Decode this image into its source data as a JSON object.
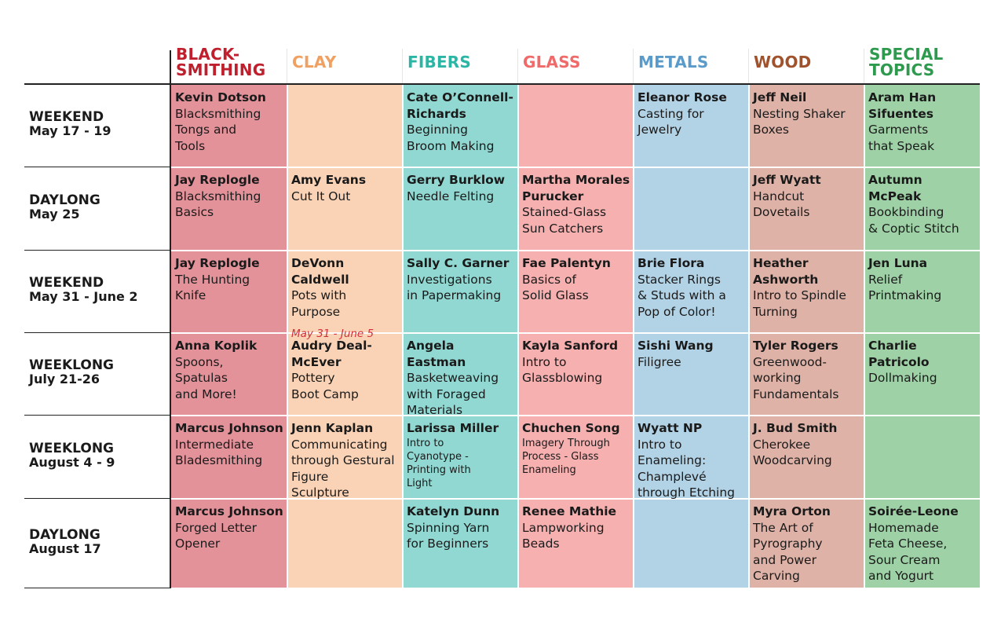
{
  "columns": [
    {
      "key": "blacksmithing",
      "label_lines": [
        "BLACK-",
        "SMITHING"
      ],
      "color": "#c0202e",
      "bg": "#e3929a"
    },
    {
      "key": "clay",
      "label_lines": [
        "CLAY"
      ],
      "color": "#f0a060",
      "bg": "#fad3b6"
    },
    {
      "key": "fibers",
      "label_lines": [
        "FIBERS"
      ],
      "color": "#2ab5a5",
      "bg": "#90d8d1"
    },
    {
      "key": "glass",
      "label_lines": [
        "GLASS"
      ],
      "color": "#f06a6a",
      "bg": "#f6b0b0"
    },
    {
      "key": "metals",
      "label_lines": [
        "METALS"
      ],
      "color": "#5a9bc9",
      "bg": "#b2d2e6"
    },
    {
      "key": "wood",
      "label_lines": [
        "WOOD"
      ],
      "color": "#a0522d",
      "bg": "#dfb2a7"
    },
    {
      "key": "special",
      "label_lines": [
        "SPECIAL",
        "TOPICS"
      ],
      "color": "#2e9a4e",
      "bg": "#9ed1a6"
    }
  ],
  "rows": [
    {
      "type": "WEEKEND",
      "date": "May 17 - 19",
      "cells": [
        {
          "name": [
            "Kevin Dotson"
          ],
          "course": [
            "Blacksmithing",
            "Tongs and",
            "Tools"
          ]
        },
        null,
        {
          "name": [
            "Cate O’Connell-",
            "Richards"
          ],
          "course": [
            "Beginning",
            "Broom Making"
          ]
        },
        null,
        {
          "name": [
            "Eleanor Rose"
          ],
          "course": [
            "Casting for",
            "Jewelry"
          ]
        },
        {
          "name": [
            "Jeff Neil"
          ],
          "course": [
            "Nesting Shaker",
            "Boxes"
          ]
        },
        {
          "name": [
            "Aram Han",
            "Sifuentes"
          ],
          "course": [
            "Garments",
            "that Speak"
          ]
        }
      ]
    },
    {
      "type": "DAYLONG",
      "date": "May 25",
      "cells": [
        {
          "name": [
            "Jay Replogle"
          ],
          "course": [
            "Blacksmithing",
            "Basics"
          ]
        },
        {
          "name": [
            "Amy Evans"
          ],
          "course": [
            "Cut It Out"
          ]
        },
        {
          "name": [
            "Gerry Burklow"
          ],
          "course": [
            "Needle Felting"
          ]
        },
        {
          "name": [
            "Martha Morales",
            "Purucker"
          ],
          "course": [
            "Stained-Glass",
            "Sun Catchers"
          ]
        },
        null,
        {
          "name": [
            "Jeff Wyatt"
          ],
          "course": [
            "Handcut",
            "Dovetails"
          ]
        },
        {
          "name": [
            "Autumn McPeak"
          ],
          "course": [
            "Bookbinding",
            "& Coptic Stitch"
          ]
        }
      ]
    },
    {
      "type": "WEEKEND",
      "date": "May 31 - June 2",
      "cells": [
        {
          "name": [
            "Jay Replogle"
          ],
          "course": [
            "The Hunting",
            "Knife"
          ]
        },
        {
          "name": [
            "DeVonn Caldwell"
          ],
          "course": [
            "Pots with",
            "Purpose"
          ],
          "note": "May 31 - June 5"
        },
        {
          "name": [
            "Sally C. Garner"
          ],
          "course": [
            "Investigations",
            "in Papermaking"
          ]
        },
        {
          "name": [
            "Fae Palentyn"
          ],
          "course": [
            "Basics of",
            "Solid Glass"
          ]
        },
        {
          "name": [
            "Brie Flora"
          ],
          "course": [
            "Stacker Rings",
            "& Studs with a",
            "Pop of Color!"
          ]
        },
        {
          "name": [
            "Heather",
            "Ashworth"
          ],
          "course": [
            "Intro to Spindle",
            "Turning"
          ]
        },
        {
          "name": [
            "Jen Luna"
          ],
          "course": [
            "Relief",
            "Printmaking"
          ]
        }
      ]
    },
    {
      "type": "WEEKLONG",
      "date": "July 21-26",
      "cells": [
        {
          "name": [
            "Anna Koplik"
          ],
          "course": [
            "Spoons,",
            "Spatulas",
            "and More!"
          ]
        },
        {
          "name": [
            "Audry Deal-",
            "McEver"
          ],
          "course": [
            "Pottery",
            "Boot Camp"
          ]
        },
        {
          "name": [
            "Angela Eastman"
          ],
          "course": [
            "Basketweaving",
            "with Foraged",
            "Materials"
          ]
        },
        {
          "name": [
            "Kayla Sanford"
          ],
          "course": [
            "Intro to",
            "Glassblowing"
          ]
        },
        {
          "name": [
            "Sishi Wang"
          ],
          "course": [
            "Filigree"
          ]
        },
        {
          "name": [
            "Tyler Rogers"
          ],
          "course": [
            "Greenwood-",
            "working",
            "Fundamentals"
          ]
        },
        {
          "name": [
            "Charlie",
            "Patricolo"
          ],
          "course": [
            "Dollmaking"
          ]
        }
      ]
    },
    {
      "type": "WEEKLONG",
      "date": "August 4 - 9",
      "cells": [
        {
          "name": [
            "Marcus Johnson"
          ],
          "course": [
            "Intermediate",
            "Bladesmithing"
          ]
        },
        {
          "name": [
            "Jenn Kaplan"
          ],
          "course": [
            "Communicating",
            "through Gestural",
            "Figure",
            "Sculpture"
          ]
        },
        {
          "name": [
            "Larissa Miller"
          ],
          "course": [
            "Intro to",
            "Cyanotype -",
            "Printing with",
            "Light"
          ],
          "small": true
        },
        {
          "name": [
            "Chuchen Song"
          ],
          "course": [
            "Imagery Through",
            "Process - Glass",
            "Enameling"
          ],
          "small": true
        },
        {
          "name": [
            "Wyatt NP"
          ],
          "course": [
            "Intro to",
            "Enameling:",
            "Champlevé",
            "through Etching"
          ]
        },
        {
          "name": [
            "J. Bud Smith"
          ],
          "course": [
            "Cherokee",
            "Woodcarving"
          ]
        },
        null
      ]
    },
    {
      "type": "DAYLONG",
      "date": "August 17",
      "cells": [
        {
          "name": [
            "Marcus Johnson"
          ],
          "course": [
            "Forged Letter",
            "Opener"
          ]
        },
        null,
        {
          "name": [
            "Katelyn Dunn"
          ],
          "course": [
            "Spinning Yarn",
            "for Beginners"
          ]
        },
        {
          "name": [
            "Renee Mathie"
          ],
          "course": [
            "Lampworking",
            "Beads"
          ]
        },
        null,
        {
          "name": [
            "Myra Orton"
          ],
          "course": [
            "The Art of",
            "Pyrography",
            "and Power",
            "Carving"
          ]
        },
        {
          "name": [
            "Soirée-Leone"
          ],
          "course": [
            "Homemade",
            "Feta Cheese,",
            "Sour Cream",
            "and Yogurt"
          ]
        }
      ]
    }
  ]
}
